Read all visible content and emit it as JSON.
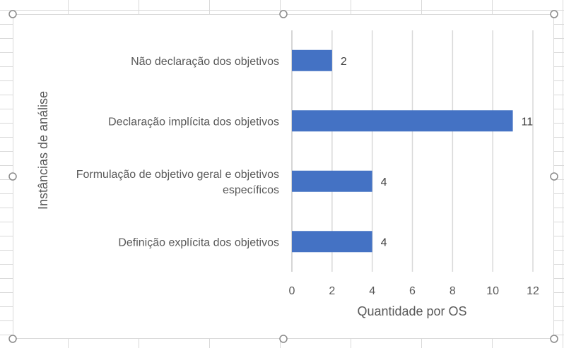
{
  "chart_data": {
    "type": "bar",
    "orientation": "horizontal",
    "categories": [
      "Não declaração dos objetivos",
      "Declaração implícita dos objetivos",
      "Formulação de objetivo geral e objetivos específicos",
      "Definição explícita dos objetivos"
    ],
    "category_label_lines": [
      [
        "Não declaração dos objetivos"
      ],
      [
        "Declaração implícita dos objetivos"
      ],
      [
        "Formulação de objetivo geral e objetivos",
        "específicos"
      ],
      [
        "Definição explícita dos objetivos"
      ]
    ],
    "values": [
      2,
      11,
      4,
      4
    ],
    "xlabel": "Quantidade por OS",
    "ylabel": "Instâncias de análise",
    "xlim": [
      0,
      12
    ],
    "xticks": [
      0,
      2,
      4,
      6,
      8,
      10,
      12
    ],
    "grid": "vertical",
    "bar_color": "#4472c4",
    "data_labels": true
  }
}
